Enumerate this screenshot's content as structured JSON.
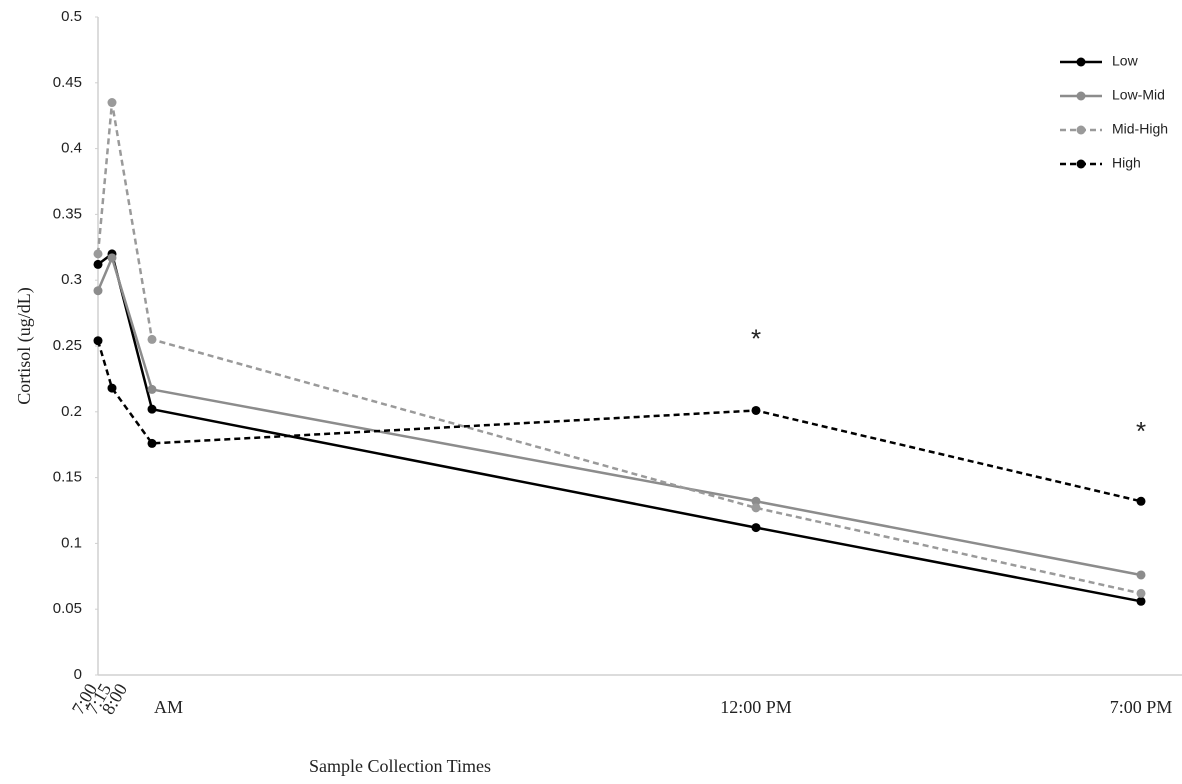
{
  "chart_data": {
    "type": "line",
    "x_label": "Sample Collection Times",
    "y_label": "Cortisol (ug/dL)",
    "categories": [
      "7:00",
      "7:15",
      "8:00",
      "12:00 PM",
      "7:00 PM"
    ],
    "x_group_label": "AM",
    "series": [
      {
        "name": "Low",
        "color": "#000000",
        "line_style": "solid",
        "values": [
          0.312,
          0.32,
          0.202,
          0.112,
          0.056
        ]
      },
      {
        "name": "Low-Mid",
        "color": "#8c8c8c",
        "line_style": "solid",
        "values": [
          0.292,
          0.317,
          0.217,
          0.132,
          0.076
        ]
      },
      {
        "name": "Mid-High",
        "color": "#9a9a9a",
        "line_style": "dashed",
        "values": [
          0.32,
          0.435,
          0.255,
          0.127,
          0.062
        ]
      },
      {
        "name": "High",
        "color": "#000000",
        "line_style": "dashed",
        "values": [
          0.254,
          0.218,
          0.176,
          0.201,
          0.132
        ]
      }
    ],
    "annotations": [
      {
        "text": "*",
        "category": 3,
        "y": 0.26
      },
      {
        "text": "*",
        "category": 4,
        "y": 0.19
      }
    ],
    "ylim": [
      0,
      0.5
    ],
    "yticks": [
      0,
      0.05,
      0.1,
      0.15,
      0.2,
      0.25,
      0.3,
      0.35,
      0.4,
      0.45,
      0.5
    ],
    "grid": false,
    "legend": "top-right"
  }
}
